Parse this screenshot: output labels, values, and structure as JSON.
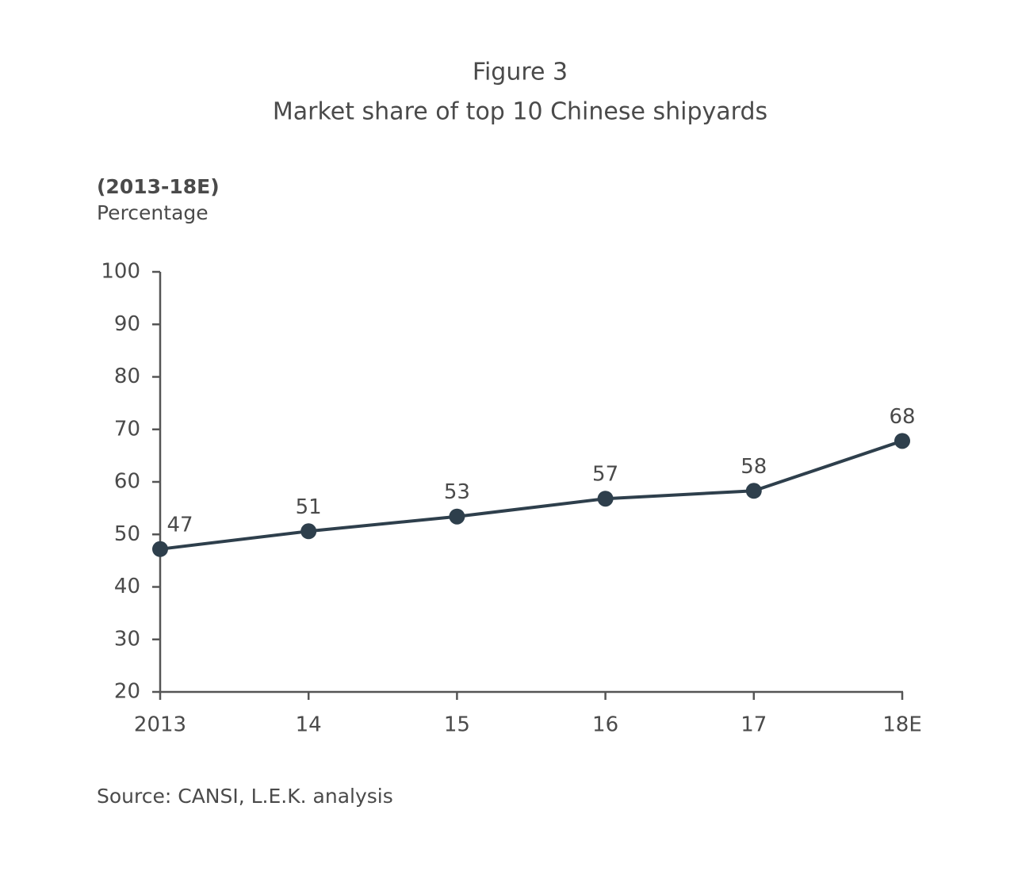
{
  "chart_data": {
    "type": "line",
    "title": "Figure 3",
    "subtitle": "Market share of top 10 Chinese shipyards",
    "period": "(2013-18E)",
    "ylabel": "Percentage",
    "source": "Source: CANSI, L.E.K. analysis",
    "categories": [
      "2013",
      "14",
      "15",
      "16",
      "17",
      "18E"
    ],
    "series": [
      {
        "name": "Market share",
        "color": "#2e3f4c",
        "values": [
          47.2,
          50.6,
          53.4,
          56.8,
          58.3,
          67.8
        ],
        "value_labels": [
          "47",
          "51",
          "53",
          "57",
          "58",
          "68"
        ]
      }
    ],
    "ylim": [
      20,
      100
    ],
    "yticks": [
      20,
      30,
      40,
      50,
      60,
      70,
      80,
      90,
      100
    ],
    "grid": false
  }
}
